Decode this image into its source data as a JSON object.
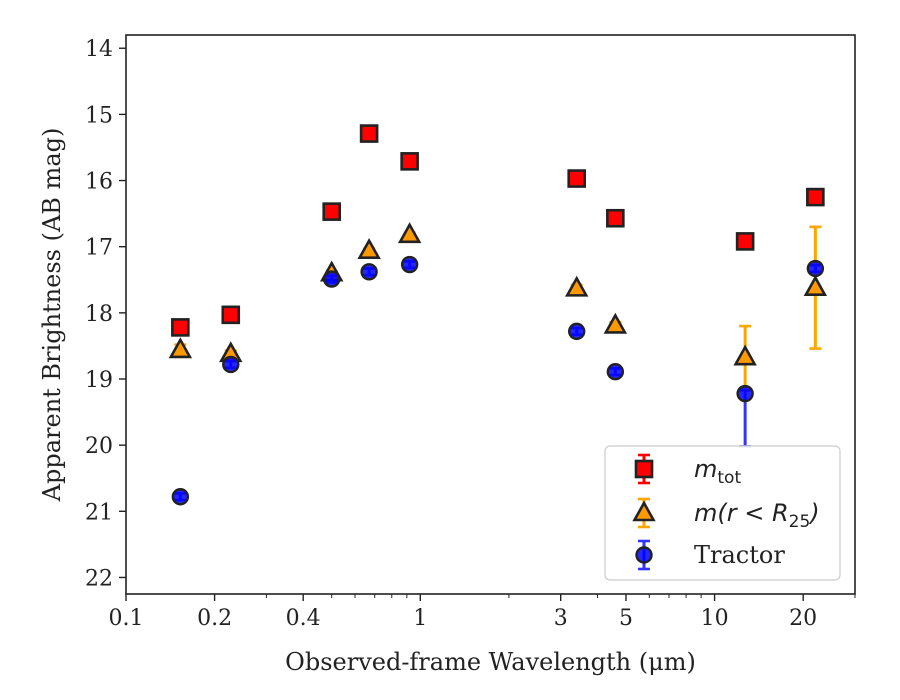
{
  "chart_data": {
    "type": "scatter",
    "title": "",
    "xlabel": "Observed-frame Wavelength (μm)",
    "ylabel": "Apparent Brightness (AB mag)",
    "x_scale": "log",
    "xlim": [
      0.1,
      30
    ],
    "ylim": [
      22.25,
      13.8
    ],
    "y_inverted": true,
    "x_ticks": [
      0.1,
      0.2,
      0.4,
      1,
      3,
      5,
      10,
      20
    ],
    "x_tick_labels": [
      "0.1",
      "0.2",
      "0.4",
      "1",
      "3",
      "5",
      "10",
      "20"
    ],
    "y_ticks": [
      14,
      15,
      16,
      17,
      18,
      19,
      20,
      21,
      22
    ],
    "y_tick_labels": [
      "14",
      "15",
      "16",
      "17",
      "18",
      "19",
      "20",
      "21",
      "22"
    ],
    "grid": false,
    "legend_position": "bottom-right",
    "series": [
      {
        "name": "m_tot",
        "legend_main": "m",
        "legend_sub": "tot",
        "marker": "square",
        "color": "#ff0000",
        "edge": "#222222",
        "errbar_color": "#ff0000",
        "points": [
          {
            "x": 0.153,
            "y": 18.22,
            "err": 0.05
          },
          {
            "x": 0.227,
            "y": 18.03,
            "err": 0.05
          },
          {
            "x": 0.5,
            "y": 16.47,
            "err": 0.03
          },
          {
            "x": 0.67,
            "y": 15.29,
            "err": 0.03
          },
          {
            "x": 0.92,
            "y": 15.71,
            "err": 0.03
          },
          {
            "x": 3.4,
            "y": 15.97,
            "err": 0.03
          },
          {
            "x": 4.6,
            "y": 16.57,
            "err": 0.03
          },
          {
            "x": 12.7,
            "y": 16.92,
            "err": 0.05
          },
          {
            "x": 22.0,
            "y": 16.25,
            "err": 0.05
          }
        ]
      },
      {
        "name": "m(r < R25)",
        "legend_main": "m(r < R",
        "legend_sub": "25",
        "legend_tail": ")",
        "marker": "triangle",
        "color": "#ff9900",
        "edge": "#222222",
        "errbar_color": "#ffa500",
        "points": [
          {
            "x": 0.153,
            "y": 18.56,
            "err": 0.08
          },
          {
            "x": 0.227,
            "y": 18.62,
            "err": 0.05
          },
          {
            "x": 0.5,
            "y": 17.4,
            "err": 0.03
          },
          {
            "x": 0.67,
            "y": 17.06,
            "err": 0.03
          },
          {
            "x": 0.92,
            "y": 16.82,
            "err": 0.03
          },
          {
            "x": 3.4,
            "y": 17.63,
            "err": 0.05
          },
          {
            "x": 4.6,
            "y": 18.19,
            "err": 0.05
          },
          {
            "x": 12.7,
            "y": 18.67,
            "err": 0.47
          },
          {
            "x": 22.0,
            "y": 17.62,
            "err": 0.92
          }
        ]
      },
      {
        "name": "Tractor",
        "legend_main": "Tractor",
        "marker": "circle",
        "color": "#0000ff",
        "edge": "#222222",
        "errbar_color": "#3333ff",
        "points": [
          {
            "x": 0.153,
            "y": 20.78,
            "err": 0.05
          },
          {
            "x": 0.227,
            "y": 18.78,
            "err": 0.05
          },
          {
            "x": 0.5,
            "y": 17.49,
            "err": 0.05
          },
          {
            "x": 0.67,
            "y": 17.38,
            "err": 0.05
          },
          {
            "x": 0.92,
            "y": 17.27,
            "err": 0.05
          },
          {
            "x": 3.4,
            "y": 18.28,
            "err": 0.05
          },
          {
            "x": 4.6,
            "y": 18.89,
            "err": 0.05
          },
          {
            "x": 12.7,
            "y": 19.22,
            "err": 0.8,
            "err_low": 0.8,
            "err_high": 0.05
          },
          {
            "x": 22.0,
            "y": 17.33,
            "err": 0.05
          }
        ]
      }
    ]
  }
}
